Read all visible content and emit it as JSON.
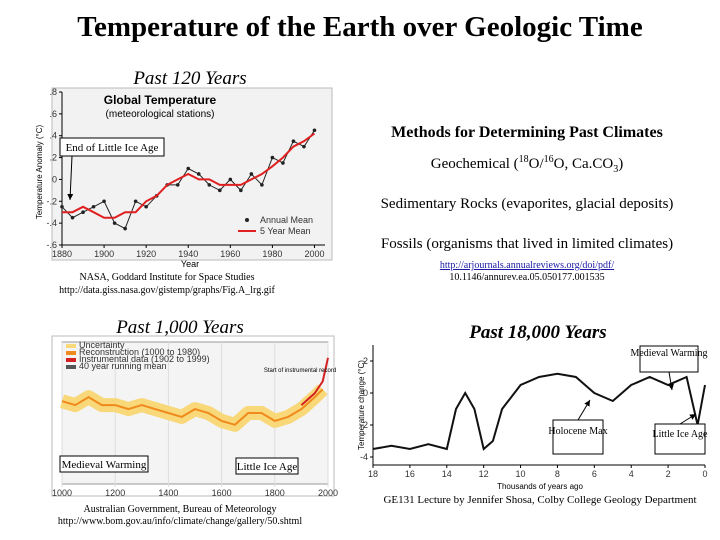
{
  "title": "Temperature of the Earth over Geologic Time",
  "methods": {
    "heading": "Methods for Determining Past Climates",
    "geochemical": [
      "Geochemical (",
      "18",
      "O/",
      "16",
      "O, Ca.CO",
      "3",
      ")"
    ],
    "sedimentary": "Sedimentary Rocks (evaporites, glacial deposits)",
    "fossils": "Fossils (organisms that lived in limited climates)",
    "link": [
      "http://arjournals.annualreviews.org/doi/pdf/",
      "10.1146/annurev.ea.05.050177.001535"
    ]
  },
  "footer": "GE131 Lecture by Jennifer Shosa, Colby College Geology Department",
  "figures": [
    {
      "heading": "Past 120 Years",
      "type": "line",
      "title": [
        "Global Temperature",
        "(meteorological stations)"
      ],
      "xlabel": "Year",
      "ylabel": "Temperature Anomaly (°C)",
      "callouts": [
        "End of Little Ice Age"
      ],
      "credit": [
        "NASA, Goddard Institute for Space Studies",
        "http://data.giss.nasa.gov/gistemp/graphs/Fig.A_lrg.gif"
      ],
      "xlim": [
        1880,
        2005
      ],
      "ylim": [
        -0.6,
        0.8
      ],
      "xticks": [
        1880,
        1900,
        1920,
        1940,
        1960,
        1980,
        2000
      ],
      "yticks": [
        {
          "value": 0.8,
          "label": ".8"
        },
        {
          "value": 0.6,
          "label": ".6"
        },
        {
          "value": 0.4,
          "label": ".4"
        },
        {
          "value": 0.2,
          "label": ".2"
        },
        0,
        {
          "value": -0.2,
          "label": "-.2"
        },
        {
          "value": -0.4,
          "label": "-.4"
        },
        {
          "value": -0.6,
          "label": "-.6"
        }
      ],
      "x": [
        1880,
        1885,
        1890,
        1895,
        1900,
        1905,
        1910,
        1915,
        1920,
        1925,
        1930,
        1935,
        1940,
        1945,
        1950,
        1955,
        1960,
        1965,
        1970,
        1975,
        1980,
        1985,
        1990,
        1995,
        2000
      ],
      "series": [
        {
          "name": "Annual Mean",
          "color": "#222222",
          "marker": true,
          "values": [
            -0.25,
            -0.35,
            -0.3,
            -0.25,
            -0.2,
            -0.4,
            -0.45,
            -0.2,
            -0.25,
            -0.15,
            -0.05,
            -0.05,
            0.1,
            0.05,
            -0.05,
            -0.1,
            0.0,
            -0.1,
            0.05,
            -0.05,
            0.2,
            0.15,
            0.35,
            0.3,
            0.45
          ]
        },
        {
          "name": "5 Year Mean",
          "color": "#e02020",
          "marker": false,
          "values": [
            -0.3,
            -0.3,
            -0.25,
            -0.3,
            -0.35,
            -0.35,
            -0.3,
            -0.3,
            -0.2,
            -0.15,
            -0.05,
            0.0,
            0.05,
            0.0,
            0.0,
            -0.05,
            -0.05,
            -0.05,
            0.0,
            0.05,
            0.12,
            0.2,
            0.3,
            0.35,
            0.42
          ]
        }
      ]
    },
    {
      "heading": "Past 1,000 Years",
      "type": "line",
      "legend": [
        "Uncertainty",
        "Reconstruction (1000 to 1980)",
        "Instrumental data (1902 to 1999)",
        "40 year running mean"
      ],
      "note": "Start of instrumental record",
      "callouts": [
        "Medieval Warming",
        "Little Ice Age"
      ],
      "credit": [
        "Australian Government, Bureau of Meteorology",
        "http://www.bom.gov.au/info/climate/change/gallery/50.shtml"
      ],
      "xlim": [
        1000,
        2000
      ],
      "ylim": [
        -1.2,
        0.6
      ],
      "xticks": [
        1000,
        1200,
        1400,
        1600,
        1800,
        2000
      ],
      "x": [
        1000,
        1050,
        1100,
        1150,
        1200,
        1250,
        1300,
        1350,
        1400,
        1450,
        1500,
        1550,
        1600,
        1650,
        1700,
        1750,
        1800,
        1850,
        1900,
        1950,
        1980,
        2000
      ],
      "series": [
        {
          "name": "Reconstruction",
          "color": "#f08a1c",
          "marker": false,
          "values": [
            -0.15,
            -0.2,
            -0.1,
            -0.2,
            -0.2,
            -0.25,
            -0.2,
            -0.25,
            -0.3,
            -0.35,
            -0.25,
            -0.3,
            -0.4,
            -0.45,
            -0.3,
            -0.3,
            -0.4,
            -0.35,
            -0.25,
            -0.1,
            0.0,
            null
          ]
        },
        {
          "name": "Instrumental",
          "color": "#d42020",
          "marker": false,
          "values": [
            null,
            null,
            null,
            null,
            null,
            null,
            null,
            null,
            null,
            null,
            null,
            null,
            null,
            null,
            null,
            null,
            null,
            null,
            -0.2,
            -0.05,
            0.1,
            0.4
          ]
        }
      ]
    },
    {
      "heading": "Past 18,000 Years",
      "type": "line",
      "xlabel": "Thousands of years ago",
      "ylabel": "Temperature change (°C)",
      "callouts": [
        "Medieval Warming",
        "Holocene Max",
        "Little Ice Age"
      ],
      "xlim": [
        18,
        0
      ],
      "ylim": [
        -4.5,
        3
      ],
      "xticks": [
        18,
        16,
        14,
        12,
        10,
        8,
        6,
        4,
        2,
        0
      ],
      "yticks": [
        2,
        0,
        -2,
        -4
      ],
      "x": [
        18,
        17,
        16,
        15,
        14,
        13.5,
        13,
        12.5,
        12,
        11.5,
        11,
        10,
        9,
        8,
        7,
        6,
        5,
        4,
        3,
        2,
        1,
        0.4,
        0
      ],
      "series": [
        {
          "name": "Temperature change",
          "color": "#111111",
          "marker": false,
          "values": [
            -3.5,
            -3.3,
            -3.5,
            -3.2,
            -3.5,
            -1,
            0,
            -1,
            -3.5,
            -3,
            -1,
            0.5,
            1,
            1.2,
            1,
            0,
            -0.5,
            0.5,
            1,
            0.5,
            1,
            -2,
            0.5
          ]
        }
      ]
    }
  ]
}
